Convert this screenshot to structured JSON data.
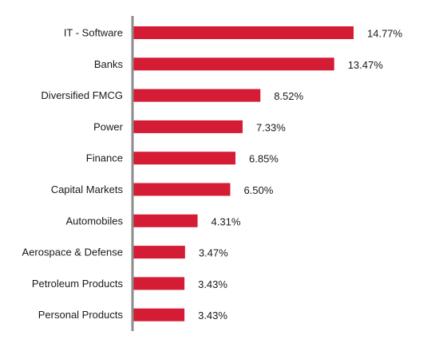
{
  "chart_data": {
    "type": "bar",
    "orientation": "horizontal",
    "categories": [
      "IT - Software",
      "Banks",
      "Diversified FMCG",
      "Power",
      "Finance",
      "Capital Markets",
      "Automobiles",
      "Aerospace & Defense",
      "Petroleum Products",
      "Personal Products"
    ],
    "values": [
      14.77,
      13.47,
      8.52,
      7.33,
      6.85,
      6.5,
      4.31,
      3.47,
      3.43,
      3.43
    ],
    "value_labels": [
      "14.77%",
      "13.47%",
      "8.52%",
      "7.33%",
      "6.85%",
      "6.50%",
      "4.31%",
      "3.47%",
      "3.43%",
      "3.43%"
    ],
    "title": "",
    "xlabel": "",
    "ylabel": "",
    "xlim": [
      0,
      14.77
    ],
    "grid": false,
    "legend": "none",
    "colors": {
      "bar": "#d51c35",
      "axis": "#8c8c8c",
      "text": "#1a1a1a"
    }
  }
}
